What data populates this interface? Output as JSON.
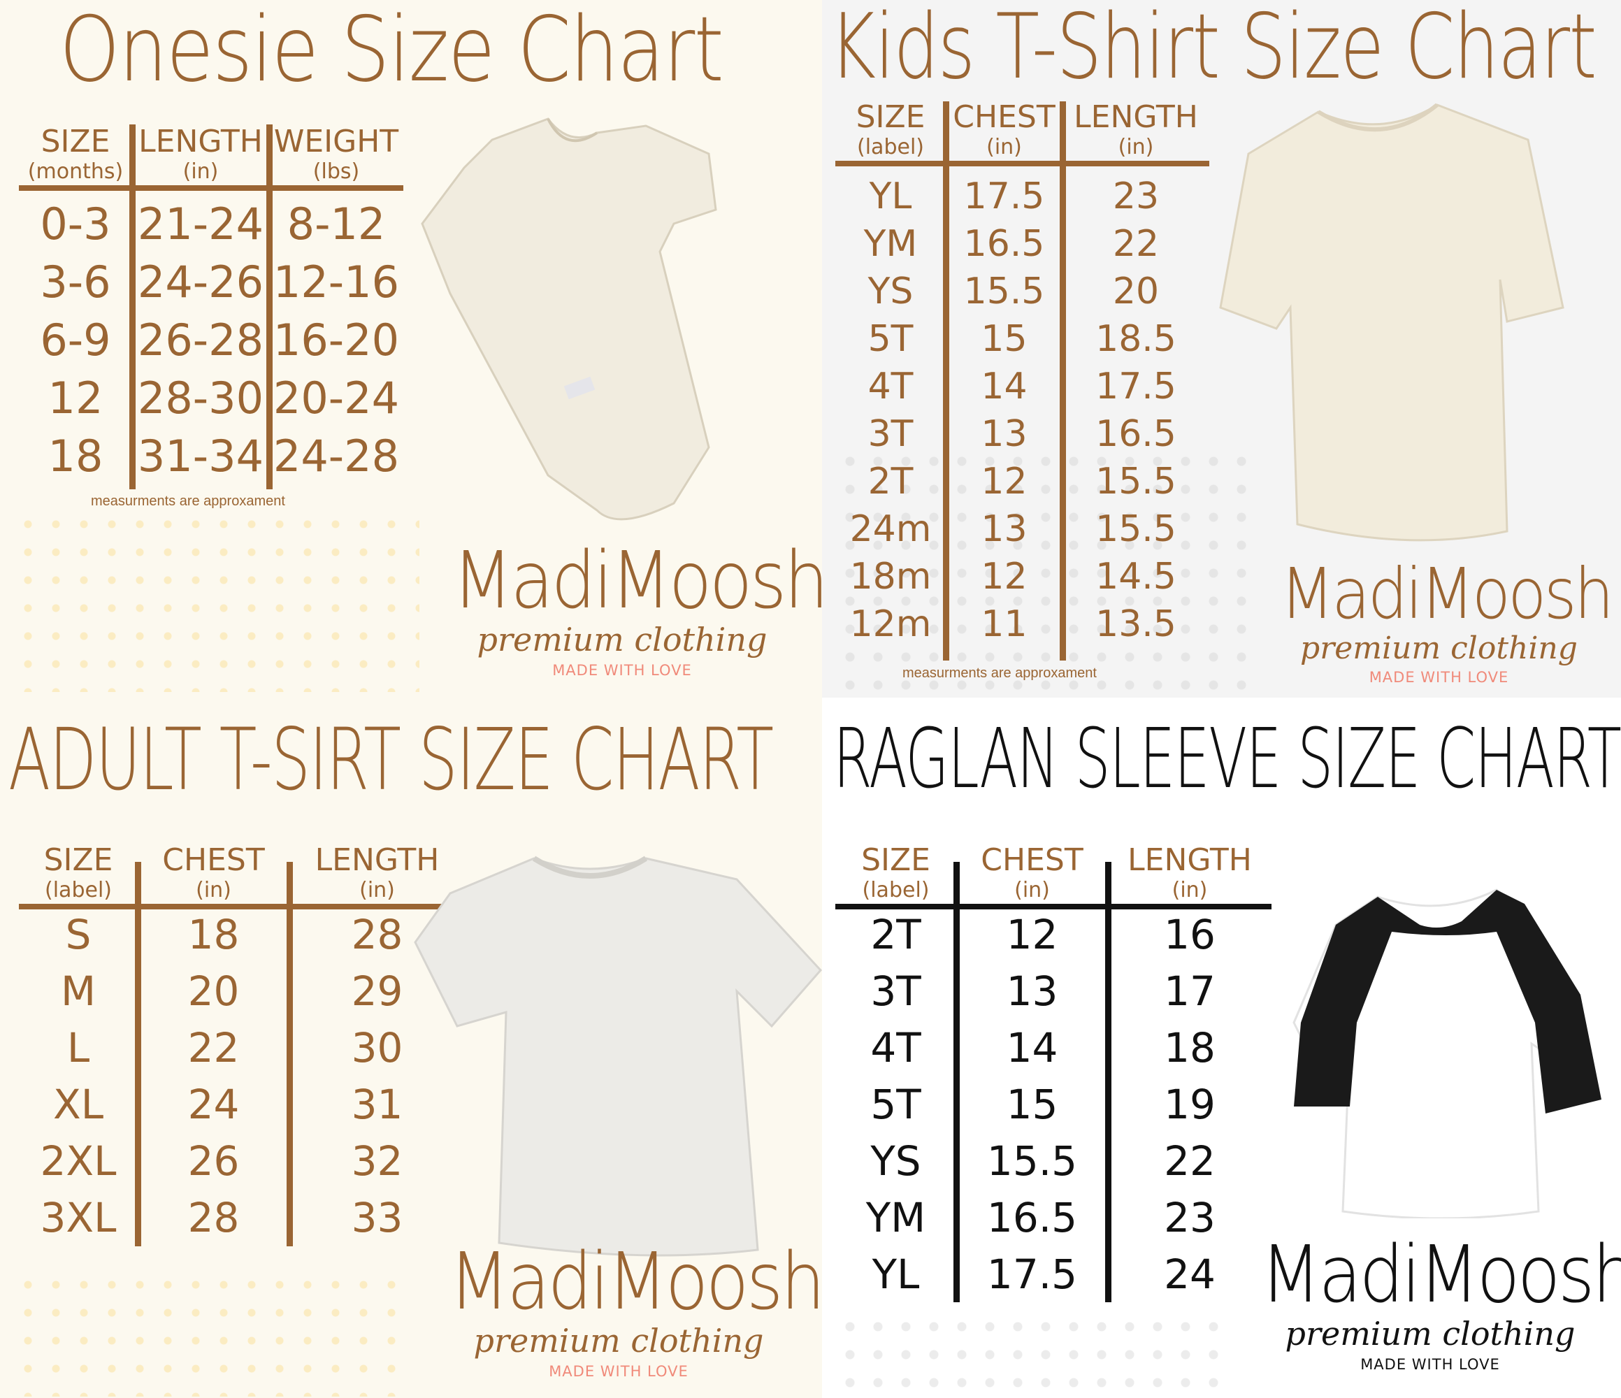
{
  "colors": {
    "brown": "#9a6533",
    "love_salmon": "#f08a7a",
    "black": "#111111"
  },
  "brand": {
    "name": "MadiMoosh",
    "tagline": "premium clothing",
    "slogan": "MADE WITH LOVE"
  },
  "onesie": {
    "title": "Onesie Size Chart",
    "headers": [
      {
        "label": "SIZE",
        "unit": "(months)"
      },
      {
        "label": "LENGTH",
        "unit": "(in)"
      },
      {
        "label": "WEIGHT",
        "unit": "(lbs)"
      }
    ],
    "rows": [
      [
        "0-3",
        "21-24",
        "8-12"
      ],
      [
        "3-6",
        "24-26",
        "12-16"
      ],
      [
        "6-9",
        "26-28",
        "16-20"
      ],
      [
        "12",
        "28-30",
        "20-24"
      ],
      [
        "18",
        "31-34",
        "24-28"
      ]
    ],
    "note": "measurments are approxament"
  },
  "kids": {
    "title": "Kids T-Shirt Size Chart",
    "headers": [
      {
        "label": "SIZE",
        "unit": "(label)"
      },
      {
        "label": "CHEST",
        "unit": "(in)"
      },
      {
        "label": "LENGTH",
        "unit": "(in)"
      }
    ],
    "rows": [
      [
        "YL",
        "17.5",
        "23"
      ],
      [
        "YM",
        "16.5",
        "22"
      ],
      [
        "YS",
        "15.5",
        "20"
      ],
      [
        "5T",
        "15",
        "18.5"
      ],
      [
        "4T",
        "14",
        "17.5"
      ],
      [
        "3T",
        "13",
        "16.5"
      ],
      [
        "2T",
        "12",
        "15.5"
      ],
      [
        "24m",
        "13",
        "15.5"
      ],
      [
        "18m",
        "12",
        "14.5"
      ],
      [
        "12m",
        "11",
        "13.5"
      ]
    ],
    "note": "measurments are approxament"
  },
  "adult": {
    "title": "ADULT T-SIRT SIZE CHART",
    "headers": [
      {
        "label": "SIZE",
        "unit": "(label)"
      },
      {
        "label": "CHEST",
        "unit": "(in)"
      },
      {
        "label": "LENGTH",
        "unit": "(in)"
      }
    ],
    "rows": [
      [
        "S",
        "18",
        "28"
      ],
      [
        "M",
        "20",
        "29"
      ],
      [
        "L",
        "22",
        "30"
      ],
      [
        "XL",
        "24",
        "31"
      ],
      [
        "2XL",
        "26",
        "32"
      ],
      [
        "3XL",
        "28",
        "33"
      ]
    ]
  },
  "raglan": {
    "title": "RAGLAN SLEEVE SIZE CHART",
    "headers": [
      {
        "label": "SIZE",
        "unit": "(label)"
      },
      {
        "label": "CHEST",
        "unit": "(in)"
      },
      {
        "label": "LENGTH",
        "unit": "(in)"
      }
    ],
    "rows": [
      [
        "2T",
        "12",
        "16"
      ],
      [
        "3T",
        "13",
        "17"
      ],
      [
        "4T",
        "14",
        "18"
      ],
      [
        "5T",
        "15",
        "19"
      ],
      [
        "YS",
        "15.5",
        "22"
      ],
      [
        "YM",
        "16.5",
        "23"
      ],
      [
        "YL",
        "17.5",
        "24"
      ]
    ]
  }
}
